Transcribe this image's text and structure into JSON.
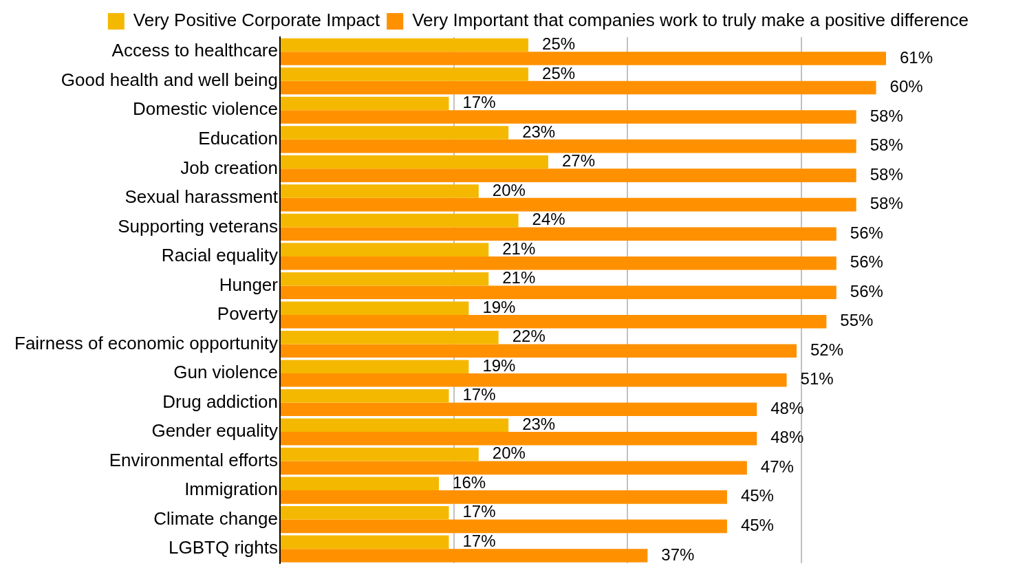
{
  "chart_data": {
    "type": "bar",
    "orientation": "horizontal",
    "categories": [
      "Access to healthcare",
      "Good health and well being",
      "Domestic violence",
      "Education",
      "Job creation",
      "Sexual harassment",
      "Supporting veterans",
      "Racial equality",
      "Hunger",
      "Poverty",
      "Fairness of economic opportunity",
      "Gun violence",
      "Drug addiction",
      "Gender equality",
      "Environmental efforts",
      "Immigration",
      "Climate change",
      "LGBTQ rights"
    ],
    "series": [
      {
        "name": "Very Positive Corporate Impact",
        "color": "#f5b800",
        "values": [
          25,
          25,
          17,
          23,
          27,
          20,
          24,
          21,
          21,
          19,
          22,
          19,
          17,
          23,
          20,
          16,
          17,
          17
        ],
        "value_labels": [
          "25%",
          "25%",
          "17%",
          "23%",
          "27%",
          "20%",
          "24%",
          "21%",
          "21%",
          "19%",
          "22%",
          "19%",
          "17%",
          "23%",
          "20%",
          "16%",
          "17%",
          "17%"
        ]
      },
      {
        "name": "Very Important that companies work to truly make a positive difference",
        "color": "#ff9100",
        "values": [
          61,
          60,
          58,
          58,
          58,
          58,
          56,
          56,
          56,
          55,
          52,
          51,
          48,
          48,
          47,
          45,
          45,
          37
        ],
        "value_labels": [
          "61%",
          "60%",
          "58%",
          "58%",
          "58%",
          "58%",
          "56%",
          "56%",
          "56%",
          "55%",
          "52%",
          "51%",
          "48%",
          "48%",
          "47%",
          "45%",
          "45%",
          "37%"
        ]
      }
    ],
    "xticks": [
      {
        "value": 0,
        "label": null
      },
      {
        "value": 17.5,
        "label": null
      },
      {
        "value": 35,
        "label": null
      },
      {
        "value": 52.5,
        "label": null
      }
    ],
    "grid": "x",
    "legend": "top",
    "tick_labels": "y"
  }
}
